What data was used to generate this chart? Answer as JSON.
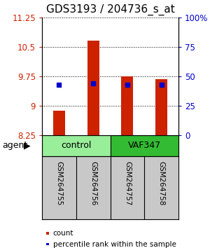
{
  "title": "GDS3193 / 204736_s_at",
  "samples": [
    "GSM264755",
    "GSM264756",
    "GSM264757",
    "GSM264758"
  ],
  "bar_values": [
    8.88,
    10.65,
    9.75,
    9.68
  ],
  "percentile_values": [
    43,
    44,
    43,
    43
  ],
  "ylim_left": [
    8.25,
    11.25
  ],
  "ylim_right": [
    0,
    100
  ],
  "yticks_left": [
    8.25,
    9.0,
    9.75,
    10.5,
    11.25
  ],
  "ytick_labels_left": [
    "8.25",
    "9",
    "9.75",
    "10.5",
    "11.25"
  ],
  "yticks_right": [
    0,
    25,
    50,
    75,
    100
  ],
  "ytick_labels_right": [
    "0",
    "25",
    "50",
    "75",
    "100%"
  ],
  "groups": [
    {
      "label": "control",
      "indices": [
        0,
        1
      ],
      "color": "#99ee99"
    },
    {
      "label": "VAF347",
      "indices": [
        2,
        3
      ],
      "color": "#33bb33"
    }
  ],
  "bar_color": "#cc2200",
  "percentile_color": "#0000cc",
  "bar_width": 0.35,
  "bar_bottom": 8.25,
  "background_label": "#c8c8c8",
  "legend_items": [
    {
      "label": "count",
      "color": "#cc2200"
    },
    {
      "label": "percentile rank within the sample",
      "color": "#0000cc"
    }
  ],
  "agent_label": "agent",
  "title_fontsize": 11,
  "tick_fontsize": 8.5,
  "sample_fontsize": 7.5,
  "group_fontsize": 9,
  "legend_fontsize": 7.5
}
